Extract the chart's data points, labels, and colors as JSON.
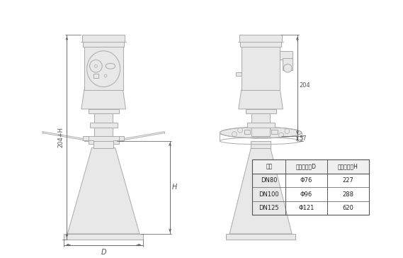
{
  "background_color": "#ffffff",
  "line_color": "#aaaaaa",
  "dark_line_color": "#555555",
  "fill_color": "#e8e8e8",
  "table_headers": [
    "法兰",
    "喇叭口直径D",
    "喇叭口高度H"
  ],
  "table_rows": [
    [
      "DN80",
      "Φ76",
      "227"
    ],
    [
      "DN100",
      "Φ96",
      "288"
    ],
    [
      "DN125",
      "Φ121",
      "620"
    ]
  ],
  "dim_label_204": "204",
  "dim_label_57": "57",
  "dim_label_H": "H",
  "dim_label_204H": "204+H",
  "dim_label_D": "D"
}
